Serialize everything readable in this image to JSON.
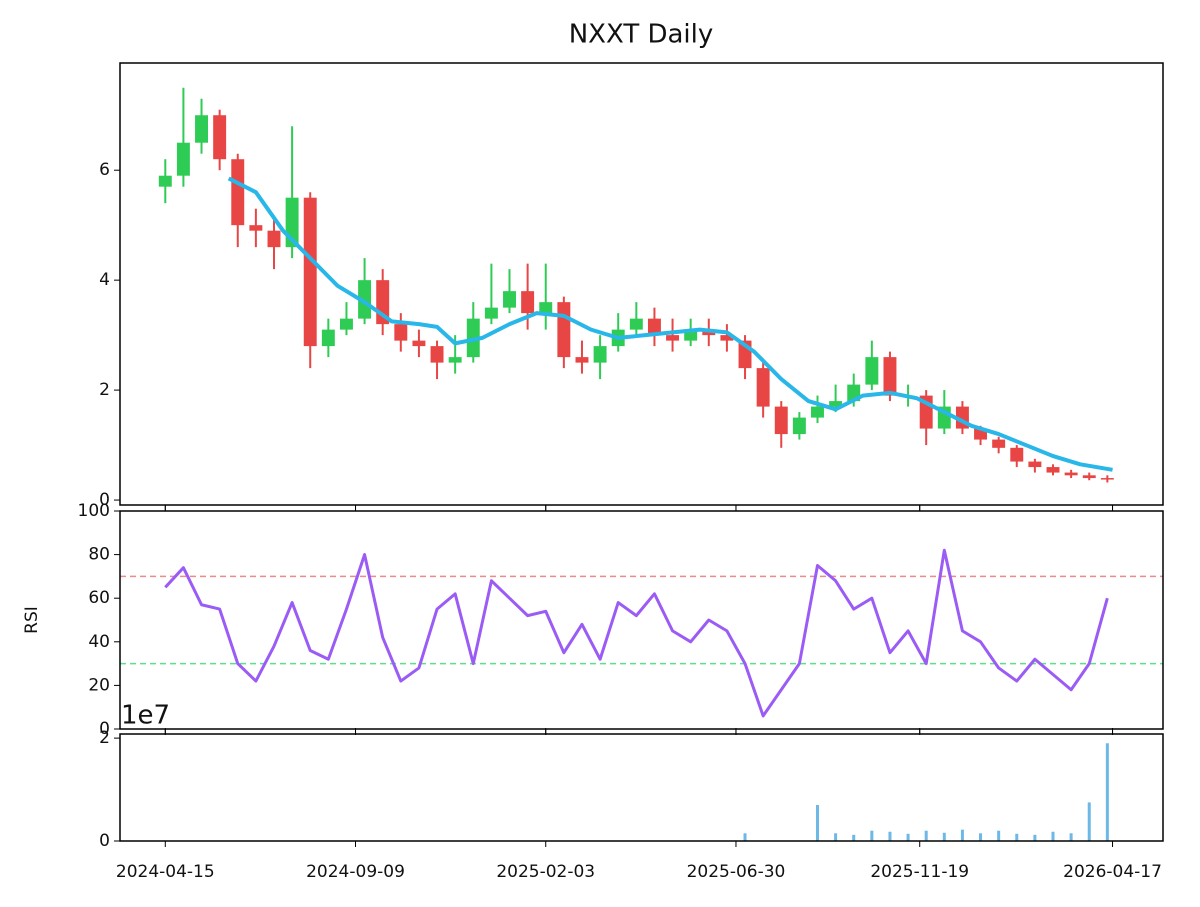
{
  "chart_data": [
    {
      "type": "candlestick",
      "title": "NXXT Daily",
      "xlim": [
        "2024-03-11",
        "2026-05-26"
      ],
      "x": [
        "2024-04-15",
        "2024-04-29",
        "2024-05-13",
        "2024-05-27",
        "2024-06-10",
        "2024-06-24",
        "2024-07-08",
        "2024-07-22",
        "2024-08-05",
        "2024-08-19",
        "2024-09-02",
        "2024-09-16",
        "2024-09-30",
        "2024-10-14",
        "2024-10-28",
        "2024-11-11",
        "2024-11-25",
        "2024-12-09",
        "2024-12-23",
        "2025-01-06",
        "2025-01-20",
        "2025-02-03",
        "2025-02-17",
        "2025-03-03",
        "2025-03-17",
        "2025-03-31",
        "2025-04-14",
        "2025-04-28",
        "2025-05-12",
        "2025-05-26",
        "2025-06-09",
        "2025-06-23",
        "2025-07-07",
        "2025-07-21",
        "2025-08-04",
        "2025-08-18",
        "2025-09-01",
        "2025-09-15",
        "2025-09-29",
        "2025-10-13",
        "2025-10-27",
        "2025-11-10",
        "2025-11-24",
        "2025-12-08",
        "2025-12-22",
        "2026-01-05",
        "2026-01-19",
        "2026-02-02",
        "2026-02-16",
        "2026-03-02",
        "2026-03-16",
        "2026-03-30",
        "2026-04-13"
      ],
      "open": [
        5.7,
        5.9,
        6.5,
        7.0,
        6.2,
        5.0,
        4.9,
        4.6,
        5.5,
        2.8,
        3.1,
        3.3,
        4.0,
        3.2,
        2.9,
        2.8,
        2.5,
        2.6,
        3.3,
        3.5,
        3.8,
        3.4,
        3.6,
        2.6,
        2.5,
        2.8,
        3.1,
        3.3,
        3.0,
        2.9,
        3.1,
        3.0,
        2.9,
        2.4,
        1.7,
        1.2,
        1.5,
        1.7,
        1.8,
        2.1,
        2.6,
        1.9,
        1.9,
        1.3,
        1.7,
        1.3,
        1.1,
        0.95,
        0.7,
        0.6,
        0.5,
        0.45,
        0.4
      ],
      "high": [
        6.2,
        7.5,
        7.3,
        7.1,
        6.3,
        5.3,
        5.1,
        6.8,
        5.6,
        3.3,
        3.6,
        4.4,
        4.2,
        3.4,
        3.1,
        2.9,
        3.0,
        3.6,
        4.3,
        4.2,
        4.3,
        4.3,
        3.7,
        2.9,
        3.0,
        3.4,
        3.6,
        3.5,
        3.3,
        3.3,
        3.3,
        3.2,
        3.0,
        2.5,
        1.8,
        1.6,
        1.9,
        2.1,
        2.3,
        2.9,
        2.7,
        2.1,
        2.0,
        2.0,
        1.8,
        1.35,
        1.15,
        1.0,
        0.75,
        0.65,
        0.55,
        0.5,
        0.45
      ],
      "low": [
        5.4,
        5.7,
        6.3,
        6.0,
        4.6,
        4.6,
        4.2,
        4.4,
        2.4,
        2.6,
        3.0,
        3.2,
        3.0,
        2.7,
        2.6,
        2.2,
        2.3,
        2.5,
        3.2,
        3.4,
        3.1,
        3.1,
        2.4,
        2.3,
        2.2,
        2.7,
        3.0,
        2.8,
        2.7,
        2.8,
        2.8,
        2.7,
        2.2,
        1.5,
        0.95,
        1.1,
        1.4,
        1.6,
        1.7,
        2.0,
        1.8,
        1.7,
        1.0,
        1.2,
        1.2,
        1.0,
        0.85,
        0.6,
        0.5,
        0.45,
        0.4,
        0.36,
        0.32
      ],
      "close": [
        5.9,
        6.5,
        7.0,
        6.2,
        5.0,
        4.9,
        4.6,
        5.5,
        2.8,
        3.1,
        3.3,
        4.0,
        3.2,
        2.9,
        2.8,
        2.5,
        2.6,
        3.3,
        3.5,
        3.8,
        3.4,
        3.6,
        2.6,
        2.5,
        2.8,
        3.1,
        3.3,
        3.0,
        2.9,
        3.1,
        3.0,
        2.9,
        2.4,
        1.7,
        1.2,
        1.5,
        1.7,
        1.8,
        2.1,
        2.6,
        1.9,
        1.9,
        1.3,
        1.7,
        1.3,
        1.1,
        0.95,
        0.7,
        0.6,
        0.5,
        0.45,
        0.4,
        0.38
      ],
      "up_color": "#2ecc55",
      "down_color": "#e84545",
      "ma": {
        "color": "#29b6e8",
        "x": [
          "2024-06-03",
          "2024-06-24",
          "2024-07-15",
          "2024-08-05",
          "2024-08-26",
          "2024-09-16",
          "2024-10-07",
          "2024-10-28",
          "2024-11-11",
          "2024-11-25",
          "2024-12-16",
          "2025-01-06",
          "2025-01-27",
          "2025-02-17",
          "2025-03-10",
          "2025-03-31",
          "2025-04-21",
          "2025-05-12",
          "2025-06-02",
          "2025-06-23",
          "2025-07-14",
          "2025-08-04",
          "2025-08-25",
          "2025-09-15",
          "2025-10-06",
          "2025-10-27",
          "2025-11-17",
          "2025-12-08",
          "2025-12-29",
          "2026-01-19",
          "2026-02-09",
          "2026-03-02",
          "2026-03-23",
          "2026-04-17"
        ],
        "values": [
          5.85,
          5.6,
          4.9,
          4.4,
          3.9,
          3.6,
          3.25,
          3.2,
          3.15,
          2.85,
          2.95,
          3.2,
          3.4,
          3.35,
          3.1,
          2.95,
          3.0,
          3.05,
          3.1,
          3.05,
          2.7,
          2.2,
          1.8,
          1.65,
          1.9,
          1.95,
          1.85,
          1.6,
          1.35,
          1.2,
          1.0,
          0.8,
          0.65,
          0.55
        ]
      },
      "ylim": [
        -0.09,
        7.95
      ],
      "yticks": [
        0,
        2,
        4,
        6
      ]
    },
    {
      "type": "line",
      "y_label": "RSI",
      "xlim": [
        "2024-03-11",
        "2026-05-26"
      ],
      "x": [
        "2024-04-15",
        "2024-04-29",
        "2024-05-13",
        "2024-05-27",
        "2024-06-10",
        "2024-06-24",
        "2024-07-08",
        "2024-07-22",
        "2024-08-05",
        "2024-08-19",
        "2024-09-02",
        "2024-09-16",
        "2024-09-30",
        "2024-10-14",
        "2024-10-28",
        "2024-11-11",
        "2024-11-25",
        "2024-12-09",
        "2024-12-23",
        "2025-01-06",
        "2025-01-20",
        "2025-02-03",
        "2025-02-17",
        "2025-03-03",
        "2025-03-17",
        "2025-03-31",
        "2025-04-14",
        "2025-04-28",
        "2025-05-12",
        "2025-05-26",
        "2025-06-09",
        "2025-06-23",
        "2025-07-07",
        "2025-07-21",
        "2025-08-04",
        "2025-08-18",
        "2025-09-01",
        "2025-09-15",
        "2025-09-29",
        "2025-10-13",
        "2025-10-27",
        "2025-11-10",
        "2025-11-24",
        "2025-12-08",
        "2025-12-22",
        "2026-01-05",
        "2026-01-19",
        "2026-02-02",
        "2026-02-16",
        "2026-03-02",
        "2026-03-16",
        "2026-03-30",
        "2026-04-13"
      ],
      "series": [
        {
          "color": "#9b5cf6",
          "values": [
            65,
            74,
            57,
            55,
            30,
            22,
            38,
            58,
            36,
            32,
            55,
            80,
            42,
            22,
            28,
            55,
            62,
            30,
            68,
            60,
            52,
            54,
            35,
            48,
            32,
            58,
            52,
            62,
            45,
            40,
            50,
            45,
            30,
            6,
            18,
            30,
            75,
            68,
            55,
            60,
            35,
            45,
            30,
            82,
            45,
            40,
            28,
            22,
            32,
            25,
            18,
            30,
            60
          ]
        }
      ],
      "hlines": [
        {
          "value": 70,
          "color": "#f08a8a"
        },
        {
          "value": 30,
          "color": "#5ee08a"
        }
      ],
      "ylim": [
        0,
        100
      ],
      "yticks": [
        0,
        20,
        40,
        60,
        80,
        100
      ]
    },
    {
      "type": "bar",
      "offset_label": "1e7",
      "xlim": [
        "2024-03-11",
        "2026-05-26"
      ],
      "x": [
        "2024-04-15",
        "2024-04-29",
        "2024-05-13",
        "2024-05-27",
        "2024-06-10",
        "2024-06-24",
        "2024-07-08",
        "2024-07-22",
        "2024-08-05",
        "2024-08-19",
        "2024-09-02",
        "2024-09-16",
        "2024-09-30",
        "2024-10-14",
        "2024-10-28",
        "2024-11-11",
        "2024-11-25",
        "2024-12-09",
        "2024-12-23",
        "2025-01-06",
        "2025-01-20",
        "2025-02-03",
        "2025-02-17",
        "2025-03-03",
        "2025-03-17",
        "2025-03-31",
        "2025-04-14",
        "2025-04-28",
        "2025-05-12",
        "2025-05-26",
        "2025-06-09",
        "2025-06-23",
        "2025-07-07",
        "2025-07-21",
        "2025-08-04",
        "2025-08-18",
        "2025-09-01",
        "2025-09-15",
        "2025-09-29",
        "2025-10-13",
        "2025-10-27",
        "2025-11-10",
        "2025-11-24",
        "2025-12-08",
        "2025-12-22",
        "2026-01-05",
        "2026-01-19",
        "2026-02-02",
        "2026-02-16",
        "2026-03-02",
        "2026-03-16",
        "2026-03-30",
        "2026-04-13"
      ],
      "values": [
        0.005,
        0.005,
        0.005,
        0.005,
        0.005,
        0.005,
        0.005,
        0.005,
        0.005,
        0.005,
        0.005,
        0.005,
        0.005,
        0.005,
        0.005,
        0.005,
        0.005,
        0.005,
        0.005,
        0.005,
        0.005,
        0.005,
        0.005,
        0.005,
        0.005,
        0.005,
        0.005,
        0.005,
        0.005,
        0.005,
        0.005,
        0.005,
        0.15,
        0.01,
        0.01,
        0.01,
        0.7,
        0.15,
        0.12,
        0.2,
        0.18,
        0.14,
        0.2,
        0.16,
        0.22,
        0.15,
        0.2,
        0.14,
        0.12,
        0.18,
        0.15,
        0.75,
        1.9
      ],
      "color": "#6cb8e6",
      "ylim": [
        0,
        2.08
      ],
      "yticks": [
        0,
        2
      ],
      "xticks": [
        "2024-04-15",
        "2024-09-09",
        "2025-02-03",
        "2025-06-30",
        "2025-11-19",
        "2026-04-17"
      ]
    }
  ]
}
